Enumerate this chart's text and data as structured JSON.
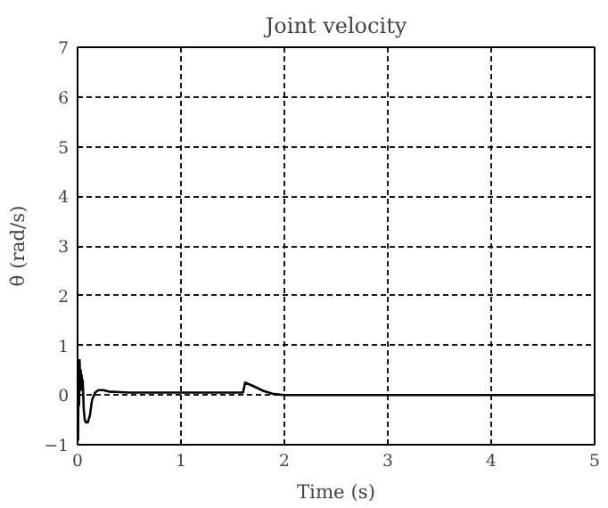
{
  "chart_data": {
    "type": "line",
    "title": "Joint velocity",
    "xlabel": "Time (s)",
    "ylabel": "θ̇ (rad/s)",
    "x": [
      0,
      0.005,
      0.01,
      0.015,
      0.02,
      0.025,
      0.03,
      0.035,
      0.04,
      0.045,
      0.05,
      0.06,
      0.07,
      0.08,
      0.1,
      0.12,
      0.14,
      0.17,
      0.2,
      0.25,
      0.3,
      0.5,
      1.0,
      1.5,
      1.6,
      1.62,
      1.7,
      1.8,
      1.9,
      2.0,
      2.5,
      3.0,
      4.0,
      5.0
    ],
    "series": [
      {
        "color": "#000000",
        "values": [
          0,
          -0.9,
          0.7,
          -0.2,
          0.7,
          0.1,
          0.5,
          0.2,
          0.4,
          0.1,
          0.3,
          -0.3,
          -0.5,
          -0.55,
          -0.55,
          -0.4,
          -0.1,
          0.05,
          0.1,
          0.1,
          0.07,
          0.05,
          0.05,
          0.05,
          0.05,
          0.25,
          0.18,
          0.08,
          0.02,
          0,
          0,
          0,
          0,
          0
        ]
      }
    ],
    "xlim": [
      0,
      5
    ],
    "ylim": [
      -1,
      7
    ],
    "xticks": [
      0,
      1,
      2,
      3,
      4,
      5
    ],
    "yticks": [
      -1,
      0,
      1,
      2,
      3,
      4,
      5,
      6,
      7
    ],
    "grid": true,
    "line_style": "solid",
    "marker": "none"
  }
}
